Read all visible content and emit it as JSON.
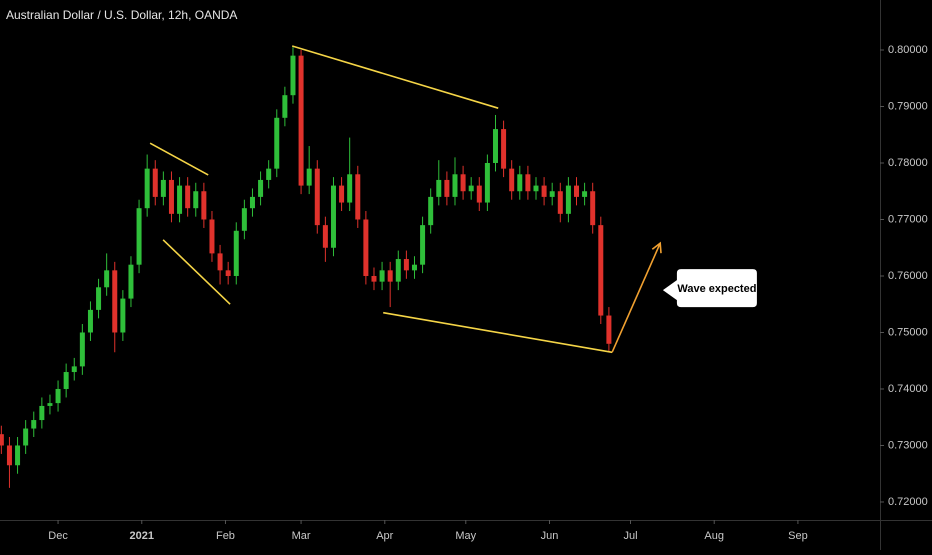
{
  "chart_data": {
    "type": "candlestick",
    "title": "Australian Dollar / U.S. Dollar, 12h, OANDA",
    "up_color": "#2fbf3a",
    "down_color": "#e0322c",
    "xlim": [
      -21.5,
      304.4
    ],
    "ylim": [
      0.71681,
      0.80885
    ],
    "xticks": [
      {
        "value": 0,
        "label": "Dec"
      },
      {
        "value": 31,
        "label": "2021"
      },
      {
        "value": 62,
        "label": "Feb"
      },
      {
        "value": 90,
        "label": "Mar"
      },
      {
        "value": 121,
        "label": "Apr"
      },
      {
        "value": 151,
        "label": "May"
      },
      {
        "value": 182,
        "label": "Jun"
      },
      {
        "value": 212,
        "label": "Jul"
      },
      {
        "value": 243,
        "label": "Aug"
      },
      {
        "value": 274,
        "label": "Sep"
      }
    ],
    "yticks": [
      {
        "value": 0.72,
        "label": "0.72000"
      },
      {
        "value": 0.73,
        "label": "0.73000"
      },
      {
        "value": 0.74,
        "label": "0.74000"
      },
      {
        "value": 0.75,
        "label": "0.75000"
      },
      {
        "value": 0.76,
        "label": "0.76000"
      },
      {
        "value": 0.77,
        "label": "0.77000"
      },
      {
        "value": 0.78,
        "label": "0.78000"
      },
      {
        "value": 0.79,
        "label": "0.79000"
      },
      {
        "value": 0.8,
        "label": "0.80000"
      }
    ],
    "candles": {
      "x": [
        -21,
        -18,
        -15,
        -12,
        -9,
        -6,
        -3,
        0,
        3,
        6,
        9,
        12,
        15,
        18,
        21,
        24,
        27,
        30,
        33,
        36,
        39,
        42,
        45,
        48,
        51,
        54,
        57,
        60,
        63,
        66,
        69,
        72,
        75,
        78,
        81,
        84,
        87,
        90,
        93,
        96,
        99,
        102,
        105,
        108,
        111,
        114,
        117,
        120,
        123,
        126,
        129,
        132,
        135,
        138,
        141,
        144,
        147,
        150,
        153,
        156,
        159,
        162,
        165,
        168,
        171,
        174,
        177,
        180,
        183,
        186,
        189,
        192,
        195,
        198,
        201,
        204
      ],
      "open": [
        0.732,
        0.73,
        0.7265,
        0.73,
        0.733,
        0.7345,
        0.737,
        0.7375,
        0.74,
        0.743,
        0.744,
        0.75,
        0.754,
        0.758,
        0.761,
        0.75,
        0.756,
        0.762,
        0.772,
        0.779,
        0.774,
        0.777,
        0.771,
        0.776,
        0.772,
        0.775,
        0.77,
        0.764,
        0.761,
        0.76,
        0.768,
        0.772,
        0.774,
        0.777,
        0.779,
        0.788,
        0.792,
        0.799,
        0.776,
        0.779,
        0.769,
        0.765,
        0.776,
        0.773,
        0.778,
        0.77,
        0.76,
        0.759,
        0.761,
        0.759,
        0.763,
        0.761,
        0.762,
        0.769,
        0.774,
        0.777,
        0.774,
        0.778,
        0.775,
        0.776,
        0.773,
        0.78,
        0.786,
        0.779,
        0.775,
        0.778,
        0.775,
        0.776,
        0.774,
        0.775,
        0.771,
        0.776,
        0.774,
        0.775,
        0.769,
        0.753
      ],
      "high": [
        0.7335,
        0.7315,
        0.7315,
        0.7345,
        0.736,
        0.7385,
        0.739,
        0.7415,
        0.7445,
        0.7455,
        0.7515,
        0.7555,
        0.7595,
        0.764,
        0.7625,
        0.7575,
        0.7635,
        0.7735,
        0.7815,
        0.7805,
        0.7785,
        0.7785,
        0.7775,
        0.7775,
        0.7765,
        0.7765,
        0.7715,
        0.7655,
        0.7625,
        0.7695,
        0.7735,
        0.7755,
        0.7785,
        0.7805,
        0.7895,
        0.7935,
        0.8005,
        0.8,
        0.783,
        0.7805,
        0.7705,
        0.7775,
        0.7775,
        0.7845,
        0.7795,
        0.7715,
        0.7615,
        0.7625,
        0.7625,
        0.7645,
        0.7645,
        0.7635,
        0.7705,
        0.7755,
        0.7805,
        0.7785,
        0.781,
        0.7795,
        0.7775,
        0.7775,
        0.7815,
        0.7885,
        0.7875,
        0.7805,
        0.7795,
        0.7795,
        0.7775,
        0.7775,
        0.7765,
        0.7765,
        0.7775,
        0.7775,
        0.7765,
        0.7765,
        0.7705,
        0.7545
      ],
      "low": [
        0.7285,
        0.7225,
        0.725,
        0.7285,
        0.7315,
        0.733,
        0.7355,
        0.736,
        0.7385,
        0.7415,
        0.7425,
        0.7485,
        0.7525,
        0.7565,
        0.7465,
        0.7485,
        0.7545,
        0.7605,
        0.7705,
        0.7725,
        0.7725,
        0.7695,
        0.7695,
        0.7705,
        0.7705,
        0.7685,
        0.7625,
        0.7585,
        0.7585,
        0.7585,
        0.7665,
        0.7705,
        0.7725,
        0.7755,
        0.7775,
        0.7865,
        0.7905,
        0.7745,
        0.7745,
        0.7675,
        0.7625,
        0.7635,
        0.7715,
        0.7715,
        0.7685,
        0.7585,
        0.7575,
        0.7575,
        0.7545,
        0.7575,
        0.7595,
        0.7595,
        0.7605,
        0.7675,
        0.7725,
        0.7725,
        0.7725,
        0.7735,
        0.7735,
        0.7715,
        0.7715,
        0.7785,
        0.7775,
        0.7735,
        0.7735,
        0.7735,
        0.7735,
        0.7725,
        0.7725,
        0.7695,
        0.7695,
        0.7725,
        0.7725,
        0.7675,
        0.7515,
        0.7465
      ],
      "close": [
        0.73,
        0.7265,
        0.73,
        0.733,
        0.7345,
        0.737,
        0.7375,
        0.74,
        0.743,
        0.744,
        0.75,
        0.754,
        0.758,
        0.761,
        0.75,
        0.756,
        0.762,
        0.772,
        0.779,
        0.774,
        0.777,
        0.771,
        0.776,
        0.772,
        0.775,
        0.77,
        0.764,
        0.761,
        0.76,
        0.768,
        0.772,
        0.774,
        0.777,
        0.779,
        0.788,
        0.792,
        0.799,
        0.776,
        0.779,
        0.769,
        0.765,
        0.776,
        0.773,
        0.778,
        0.77,
        0.76,
        0.759,
        0.761,
        0.759,
        0.763,
        0.761,
        0.762,
        0.769,
        0.774,
        0.777,
        0.774,
        0.778,
        0.775,
        0.776,
        0.773,
        0.78,
        0.786,
        0.779,
        0.775,
        0.778,
        0.775,
        0.776,
        0.774,
        0.775,
        0.771,
        0.776,
        0.774,
        0.775,
        0.769,
        0.753,
        0.748
      ]
    },
    "trendlines": [
      {
        "color": "#f5d547",
        "x": [
          34.1,
          55.6
        ],
        "y": [
          0.7835,
          0.7779
        ]
      },
      {
        "color": "#f5d547",
        "x": [
          38.9,
          63.7
        ],
        "y": [
          0.7664,
          0.755
        ]
      },
      {
        "color": "#f5d547",
        "x": [
          86.7,
          163.0
        ],
        "y": [
          0.8007,
          0.7897
        ]
      },
      {
        "color": "#f5d547",
        "x": [
          120.4,
          205.2
        ],
        "y": [
          0.7535,
          0.7465
        ]
      }
    ],
    "arrow": {
      "color": "#f0a030",
      "x": [
        205.2,
        223.0
      ],
      "y": [
        0.7465,
        0.7658
      ]
    },
    "annotation": {
      "text": "Wave expected",
      "x": 224.0,
      "y": 0.7575
    }
  }
}
